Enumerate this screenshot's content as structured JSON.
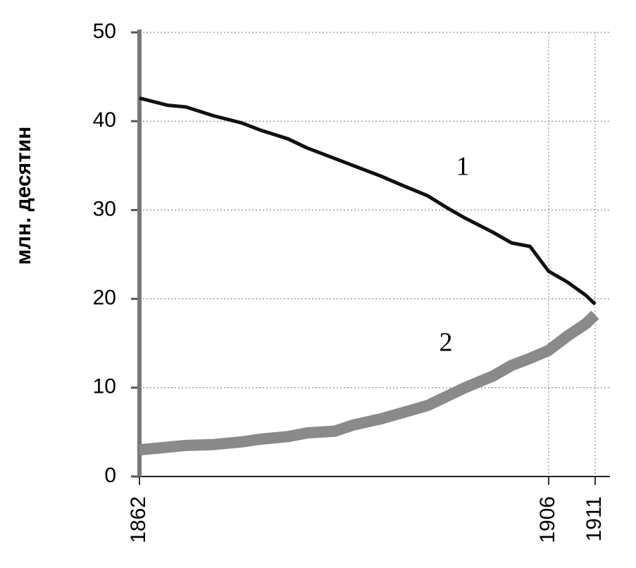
{
  "chart_data": {
    "type": "line",
    "y_label": "млн. десятин",
    "x": [
      1862,
      1865,
      1867,
      1870,
      1873,
      1875,
      1878,
      1880,
      1883,
      1885,
      1888,
      1890,
      1893,
      1895,
      1897,
      1900,
      1902,
      1904,
      1906,
      1908,
      1910,
      1911
    ],
    "series": [
      {
        "name": "1",
        "color": "#111111",
        "values": [
          42.6,
          41.8,
          41.6,
          40.6,
          39.8,
          39.0,
          38.0,
          37.0,
          35.8,
          35.0,
          33.8,
          32.9,
          31.6,
          30.3,
          29.1,
          27.5,
          26.3,
          25.9,
          23.1,
          21.9,
          20.4,
          19.4
        ]
      },
      {
        "name": "2",
        "color": "#8a8a8a",
        "values": [
          3.0,
          3.3,
          3.5,
          3.6,
          3.9,
          4.2,
          4.5,
          4.9,
          5.1,
          5.8,
          6.5,
          7.1,
          8.0,
          9.0,
          10.0,
          11.3,
          12.5,
          13.3,
          14.2,
          15.8,
          17.2,
          18.2
        ]
      }
    ],
    "xlim": [
      1862,
      1911
    ],
    "xticks": [
      1862,
      1906,
      1911
    ],
    "ylim": [
      0,
      50
    ],
    "yticks": [
      0,
      10,
      20,
      30,
      40,
      50
    ],
    "grid": true
  }
}
